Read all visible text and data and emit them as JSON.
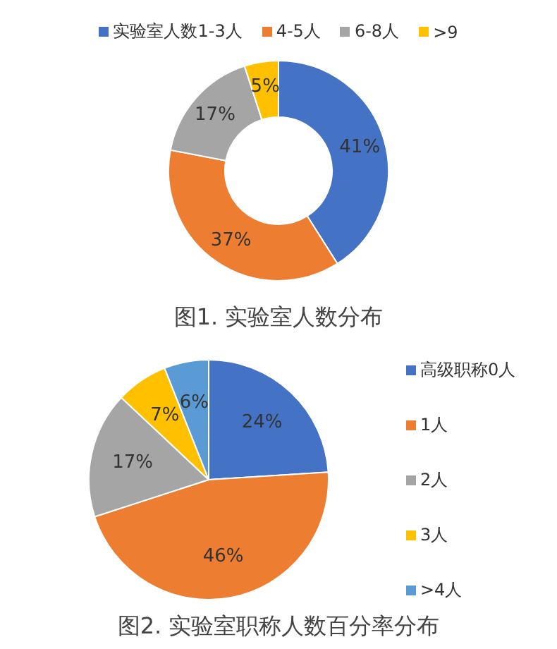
{
  "chart_data": [
    {
      "type": "donut",
      "title": "图1. 实验室人数分布",
      "categories": [
        "实验室人数1-3人",
        "4-5人",
        "6-8人",
        ">9"
      ],
      "values": [
        41,
        37,
        17,
        5
      ],
      "colors": [
        "#4472c4",
        "#ed7d31",
        "#a5a5a5",
        "#ffc000"
      ],
      "value_labels": [
        "41%",
        "37%",
        "17%",
        "5%"
      ],
      "legend": "top"
    },
    {
      "type": "pie",
      "title": "图2. 实验室职称人数百分率分布",
      "categories": [
        "高级职称0人",
        "1人",
        "2人",
        "3人",
        ">4人"
      ],
      "values": [
        24,
        46,
        17,
        7,
        6
      ],
      "colors": [
        "#4472c4",
        "#ed7d31",
        "#a5a5a5",
        "#ffc000",
        "#5b9bd5"
      ],
      "value_labels": [
        "24%",
        "46%",
        "17%",
        "7%",
        "6%"
      ],
      "legend": "right"
    }
  ]
}
